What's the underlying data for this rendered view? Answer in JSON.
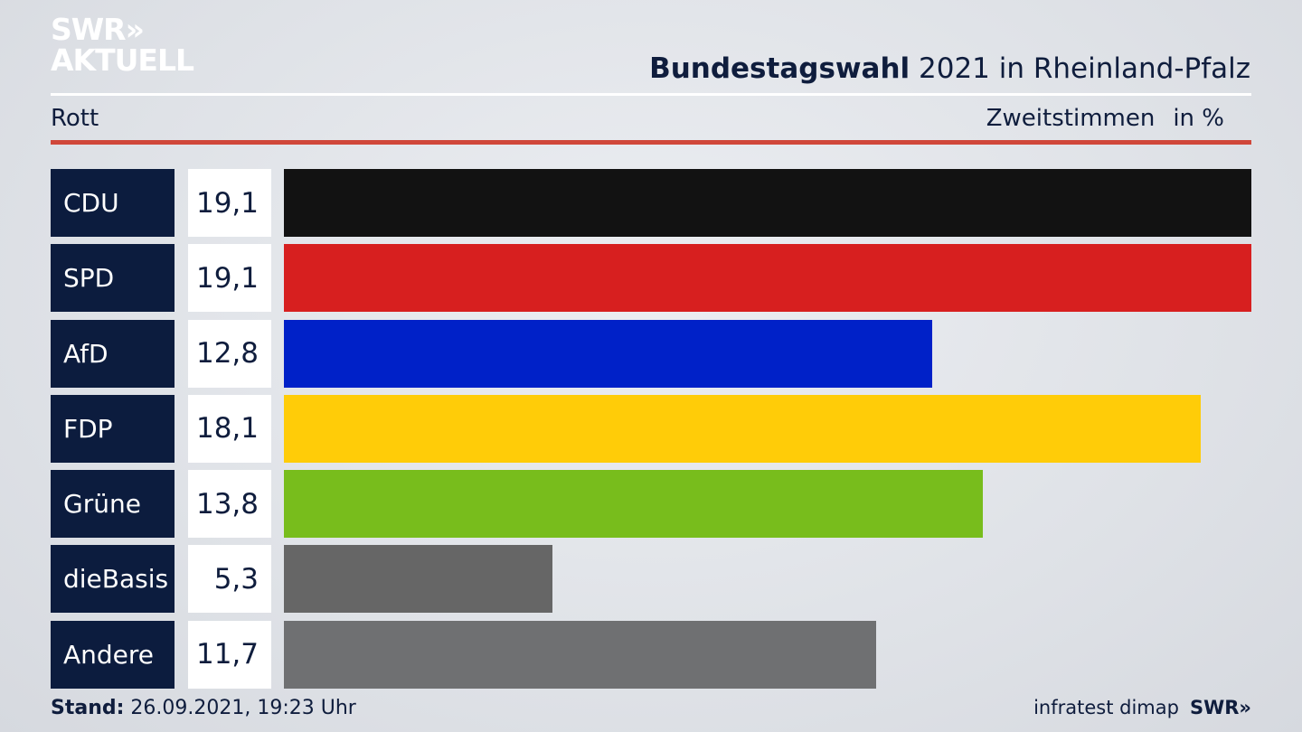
{
  "header": {
    "logo_line1": "SWR",
    "logo_chevrons": "»",
    "logo_line2": "AKTUELL",
    "title_strong": "Bundestagswahl",
    "title_rest": " 2021 in Rheinland-Pfalz",
    "region": "Rott",
    "measure": "Zweitstimmen",
    "unit": "in %"
  },
  "footer": {
    "stand_label": "Stand:",
    "stand_value": " 26.09.2021, 19:23 Uhr",
    "source": "infratest dimap",
    "brand": "SWR»"
  },
  "colors": {
    "CDU": "#121212",
    "SPD": "#d71f1f",
    "AfD": "#0021c8",
    "FDP": "#ffcc08",
    "Grüne": "#78bd1c",
    "dieBasis": "#666666",
    "Andere": "#6f7072"
  },
  "chart_data": {
    "type": "bar",
    "orientation": "horizontal",
    "categories": [
      "CDU",
      "SPD",
      "AfD",
      "FDP",
      "Grüne",
      "dieBasis",
      "Andere"
    ],
    "values": [
      19.1,
      19.1,
      12.8,
      18.1,
      13.8,
      5.3,
      11.7
    ],
    "value_labels": [
      "19,1",
      "19,1",
      "12,8",
      "18,1",
      "13,8",
      "5,3",
      "11,7"
    ],
    "xlim": [
      0,
      19.1
    ],
    "grid": false,
    "legend": "none"
  }
}
